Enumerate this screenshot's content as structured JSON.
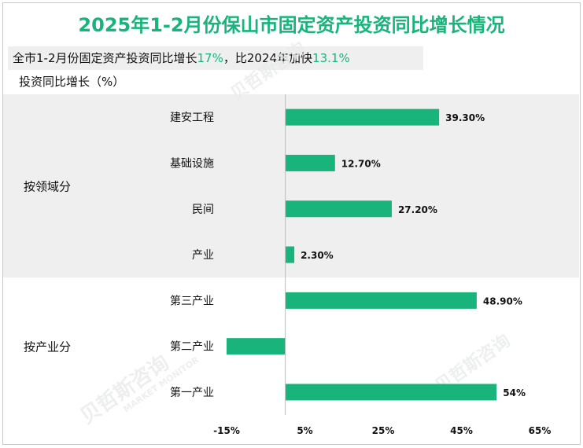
{
  "title": "2025年1-2月份保山市固定资产投资同比增长情况",
  "summary": {
    "prefix": "全市1-2月份固定资产投资同比增长",
    "growth": "17%",
    "middle": "，比2024年加快",
    "speedup": "13.1%"
  },
  "axis_title": "投资同比增长（%）",
  "colors": {
    "bar": "#19b47c",
    "accent": "#19b47c",
    "band": "#efefef"
  },
  "chart_data": {
    "type": "bar",
    "orientation": "horizontal",
    "xlim": [
      -15,
      65
    ],
    "x_ticks": [
      "-15%",
      "5%",
      "25%",
      "45%",
      "65%"
    ],
    "groups": [
      {
        "label": "按领域分",
        "shaded": true,
        "items": [
          {
            "label": "建安工程",
            "value": 39.3,
            "value_label": "39.30%"
          },
          {
            "label": "基础设施",
            "value": 12.7,
            "value_label": "12.70%"
          },
          {
            "label": "民间",
            "value": 27.2,
            "value_label": "27.20%"
          },
          {
            "label": "产业",
            "value": 2.3,
            "value_label": "2.30%"
          }
        ]
      },
      {
        "label": "按产业分",
        "shaded": false,
        "items": [
          {
            "label": "第三产业",
            "value": 48.9,
            "value_label": "48.90%"
          },
          {
            "label": "第二产业",
            "value": -15.0,
            "value_label": ""
          },
          {
            "label": "第一产业",
            "value": 54,
            "value_label": "54%"
          }
        ]
      }
    ]
  }
}
